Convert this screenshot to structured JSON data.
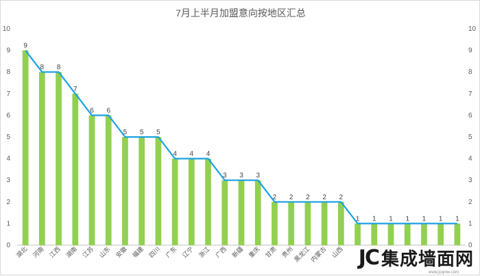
{
  "chart_data": {
    "type": "bar",
    "title": "7月上半月加盟意向按地区汇总",
    "categories": [
      "湖北",
      "河南",
      "江西",
      "湖南",
      "江苏",
      "山东",
      "安徽",
      "福建",
      "四川",
      "广东",
      "辽宁",
      "浙江",
      "广西",
      "新疆",
      "重庆",
      "甘肃",
      "贵州",
      "黑龙江",
      "内蒙古",
      "山西",
      "",
      "",
      "",
      "",
      "",
      "",
      ""
    ],
    "series": [
      {
        "values": [
          9,
          8,
          8,
          7,
          6,
          6,
          5,
          5,
          5,
          4,
          4,
          4,
          3,
          3,
          3,
          2,
          2,
          2,
          2,
          2,
          1,
          1,
          1,
          1,
          1,
          1,
          1
        ],
        "color": "#92d050"
      }
    ],
    "line_color": "#1ba1e2",
    "ylim": [
      0,
      10
    ],
    "yticks": [
      0,
      1,
      2,
      3,
      4,
      5,
      6,
      7,
      8,
      9,
      10
    ],
    "grid": false,
    "secondary_axis": true
  },
  "watermark": {
    "logo": "JC",
    "text": "集成墙面网",
    "url": "www.jcqmw.com"
  }
}
